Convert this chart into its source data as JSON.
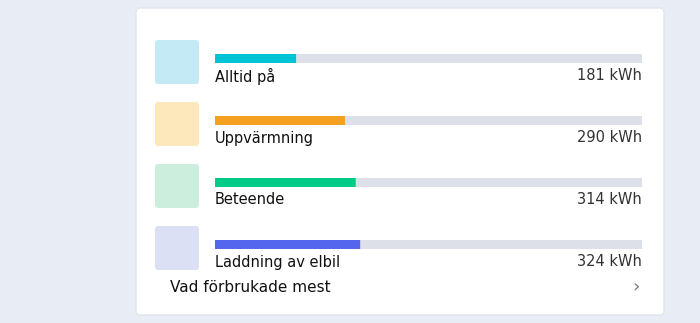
{
  "title": "Vad förbrukade mest",
  "title_arrow": "›",
  "outer_bg": "#e8edf5",
  "card_color": "#ffffff",
  "card_border": "#e0e4ec",
  "items": [
    {
      "label": "Laddning av elbil",
      "value": 324,
      "unit": "kWh",
      "bar_color": "#5566ee",
      "bar_bg_color": "#dde0e8",
      "icon_bg": "#dce0f5",
      "icon_color": "#5566cc"
    },
    {
      "label": "Beteende",
      "value": 314,
      "unit": "kWh",
      "bar_color": "#00cc88",
      "bar_bg_color": "#dde0e8",
      "icon_bg": "#cceedd",
      "icon_color": "#00aa66"
    },
    {
      "label": "Uppvärmning",
      "value": 290,
      "unit": "kWh",
      "bar_color": "#f5a020",
      "bar_bg_color": "#dde0e8",
      "icon_bg": "#fde8bb",
      "icon_color": "#cc7700"
    },
    {
      "label": "Alltid på",
      "value": 181,
      "unit": "kWh",
      "bar_color": "#00c4d4",
      "bar_bg_color": "#dde0e8",
      "icon_bg": "#c4eaf5",
      "icon_color": "#0099bb"
    }
  ],
  "max_value": 324,
  "figsize": [
    7.0,
    3.23
  ],
  "dpi": 100
}
